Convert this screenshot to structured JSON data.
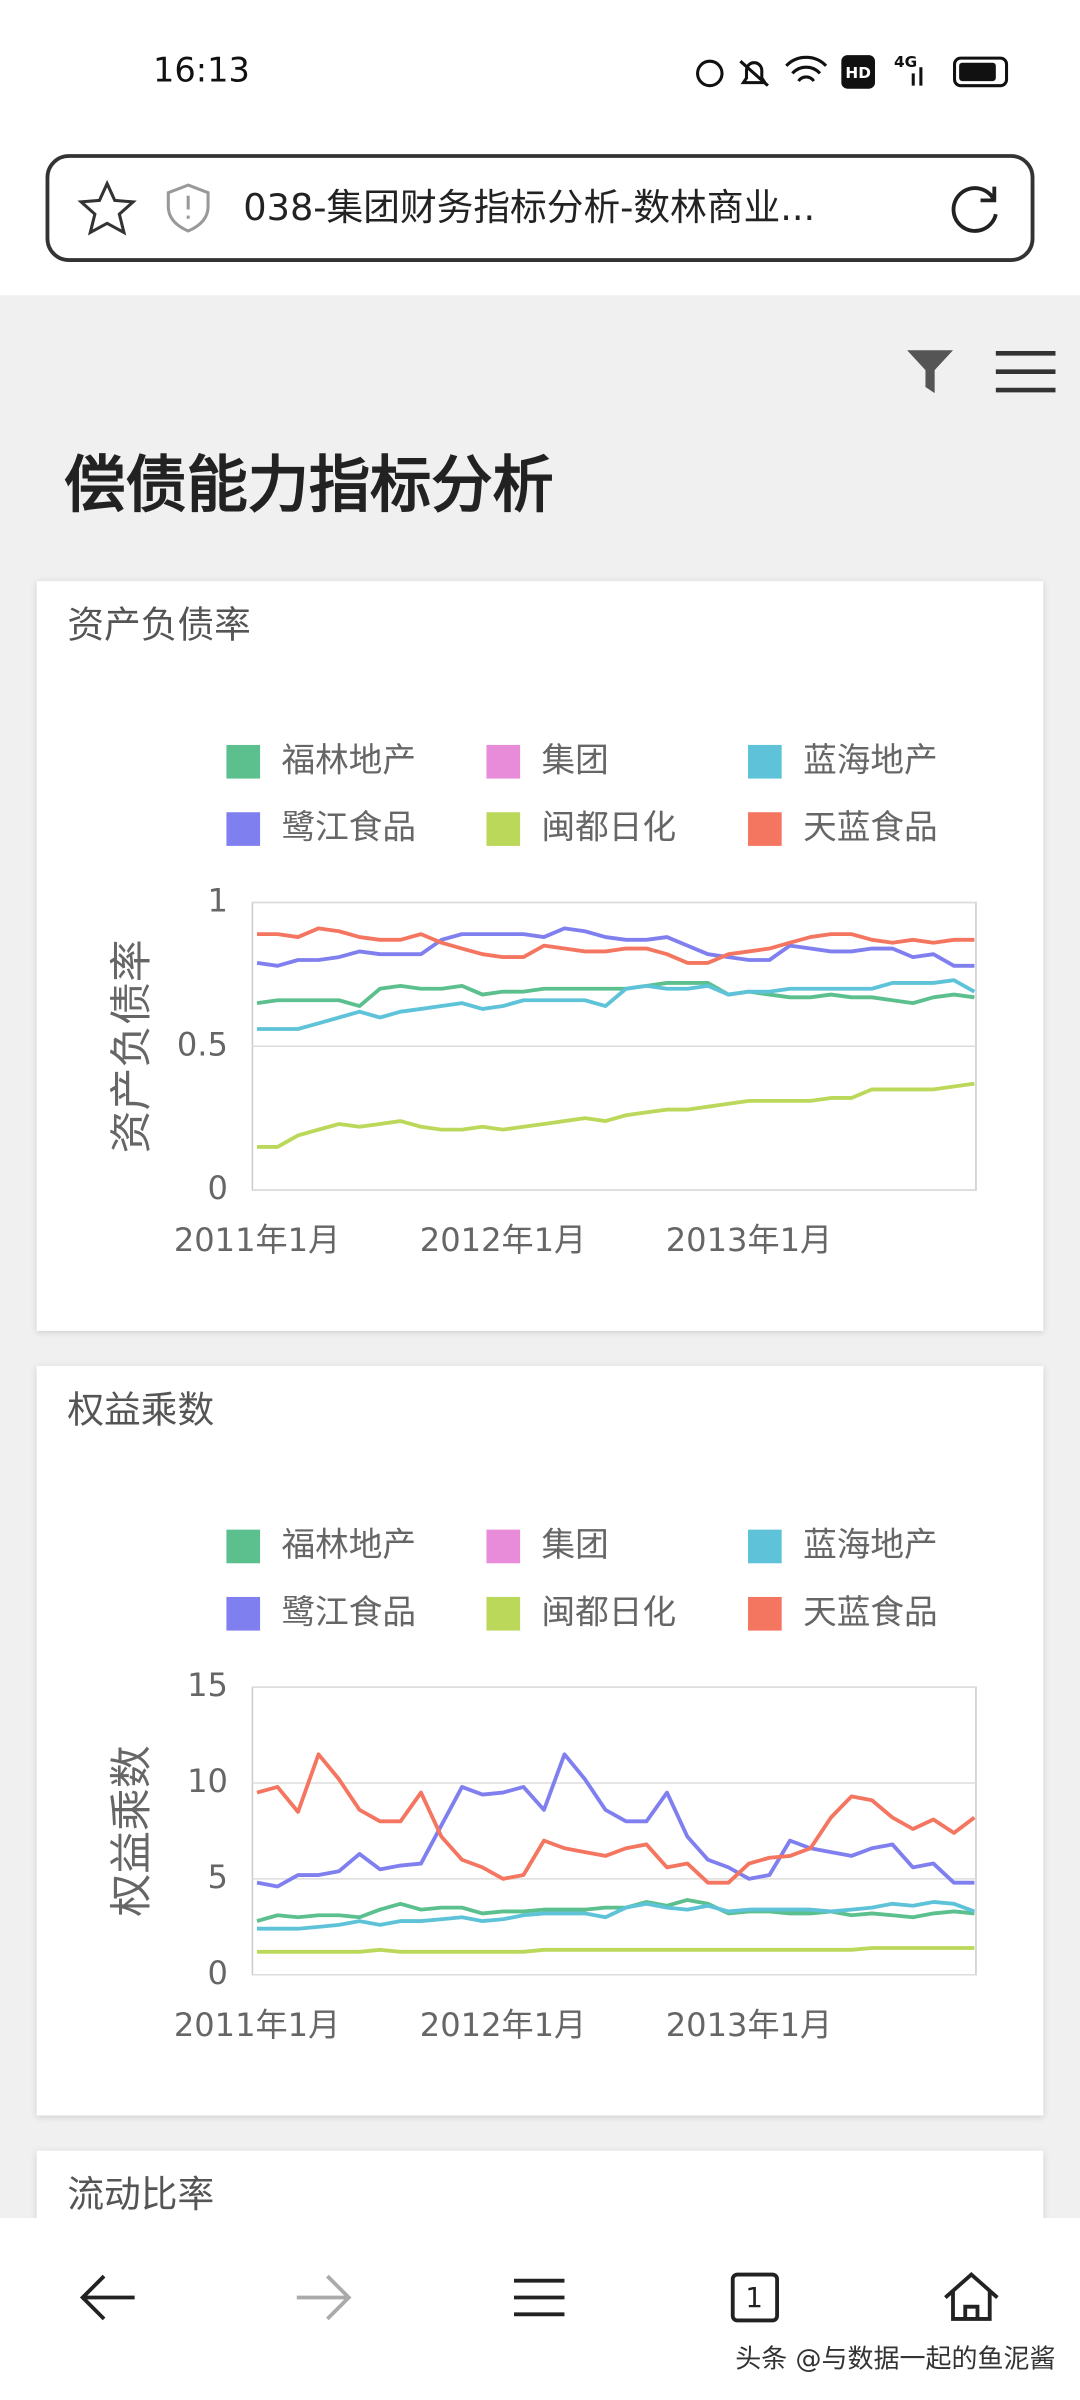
{
  "status_bar": {
    "time": "16:13",
    "badges": [
      "HD",
      "4G"
    ]
  },
  "url_bar": {
    "title": "038-集团财务指标分析-数林商业..."
  },
  "page_title": "偿债能力指标分析",
  "chart_data": [
    {
      "type": "line",
      "title": "资产负债率",
      "y_label": "资产负债率",
      "categories": [
        "2011年1月",
        null,
        null,
        null,
        null,
        null,
        null,
        null,
        null,
        null,
        null,
        null,
        "2012年1月",
        null,
        null,
        null,
        null,
        null,
        null,
        null,
        null,
        null,
        null,
        null,
        "2013年1月",
        null,
        null,
        null,
        null,
        null,
        null,
        null,
        null,
        null,
        null,
        null
      ],
      "ylim": [
        0,
        1
      ],
      "yticks": [
        0,
        0.5,
        1
      ],
      "grid": true,
      "series": [
        {
          "name": "福林地产",
          "color": "#5cc08e",
          "values": [
            0.65,
            0.66,
            0.66,
            0.66,
            0.66,
            0.64,
            0.7,
            0.71,
            0.7,
            0.7,
            0.71,
            0.68,
            0.69,
            0.69,
            0.7,
            0.7,
            0.7,
            0.7,
            0.7,
            0.71,
            0.72,
            0.72,
            0.72,
            0.68,
            0.69,
            0.68,
            0.67,
            0.67,
            0.68,
            0.67,
            0.67,
            0.66,
            0.65,
            0.67,
            0.68,
            0.67
          ]
        },
        {
          "name": "集团",
          "color": "#e88bd8",
          "values": [
            null,
            null,
            null,
            null,
            null,
            null,
            null,
            null,
            null,
            null,
            null,
            null,
            null,
            null,
            null,
            null,
            null,
            null,
            null,
            null,
            null,
            null,
            null,
            null,
            null,
            null,
            null,
            null,
            null,
            null,
            null,
            null,
            null,
            null,
            null,
            null
          ]
        },
        {
          "name": "蓝海地产",
          "color": "#5ec3d8",
          "values": [
            0.56,
            0.56,
            0.56,
            0.58,
            0.6,
            0.62,
            0.6,
            0.62,
            0.63,
            0.64,
            0.65,
            0.63,
            0.64,
            0.66,
            0.66,
            0.66,
            0.66,
            0.64,
            0.7,
            0.71,
            0.7,
            0.7,
            0.71,
            0.68,
            0.69,
            0.69,
            0.7,
            0.7,
            0.7,
            0.7,
            0.7,
            0.72,
            0.72,
            0.72,
            0.73,
            0.69
          ]
        },
        {
          "name": "鹭江食品",
          "color": "#7f7fef",
          "values": [
            0.79,
            0.78,
            0.8,
            0.8,
            0.81,
            0.83,
            0.82,
            0.82,
            0.82,
            0.87,
            0.89,
            0.89,
            0.89,
            0.89,
            0.88,
            0.91,
            0.9,
            0.88,
            0.87,
            0.87,
            0.88,
            0.85,
            0.82,
            0.81,
            0.8,
            0.8,
            0.85,
            0.84,
            0.83,
            0.83,
            0.84,
            0.84,
            0.81,
            0.82,
            0.78,
            0.78
          ]
        },
        {
          "name": "闽都日化",
          "color": "#bcd85a",
          "values": [
            0.15,
            0.15,
            0.19,
            0.21,
            0.23,
            0.22,
            0.23,
            0.24,
            0.22,
            0.21,
            0.21,
            0.22,
            0.21,
            0.22,
            0.23,
            0.24,
            0.25,
            0.24,
            0.26,
            0.27,
            0.28,
            0.28,
            0.29,
            0.3,
            0.31,
            0.31,
            0.31,
            0.31,
            0.32,
            0.32,
            0.35,
            0.35,
            0.35,
            0.35,
            0.36,
            0.37
          ]
        },
        {
          "name": "天蓝食品",
          "color": "#f47560",
          "values": [
            0.89,
            0.89,
            0.88,
            0.91,
            0.9,
            0.88,
            0.87,
            0.87,
            0.89,
            0.86,
            0.84,
            0.82,
            0.81,
            0.81,
            0.85,
            0.84,
            0.83,
            0.83,
            0.84,
            0.84,
            0.82,
            0.79,
            0.79,
            0.82,
            0.83,
            0.84,
            0.86,
            0.88,
            0.89,
            0.89,
            0.87,
            0.86,
            0.87,
            0.86,
            0.87,
            0.87
          ]
        }
      ]
    },
    {
      "type": "line",
      "title": "权益乘数",
      "y_label": "权益乘数",
      "categories": [
        "2011年1月",
        null,
        null,
        null,
        null,
        null,
        null,
        null,
        null,
        null,
        null,
        null,
        "2012年1月",
        null,
        null,
        null,
        null,
        null,
        null,
        null,
        null,
        null,
        null,
        null,
        "2013年1月",
        null,
        null,
        null,
        null,
        null,
        null,
        null,
        null,
        null,
        null,
        null
      ],
      "ylim": [
        0,
        15
      ],
      "yticks": [
        0,
        5,
        10,
        15
      ],
      "grid": true,
      "series": [
        {
          "name": "福林地产",
          "color": "#5cc08e",
          "values": [
            2.8,
            3.1,
            3.0,
            3.1,
            3.1,
            3.0,
            3.4,
            3.7,
            3.4,
            3.5,
            3.5,
            3.2,
            3.3,
            3.3,
            3.4,
            3.4,
            3.4,
            3.5,
            3.5,
            3.8,
            3.6,
            3.9,
            3.7,
            3.2,
            3.3,
            3.3,
            3.2,
            3.2,
            3.3,
            3.1,
            3.2,
            3.1,
            3.0,
            3.2,
            3.3,
            3.2
          ]
        },
        {
          "name": "集团",
          "color": "#e88bd8",
          "values": [
            null,
            null,
            null,
            null,
            null,
            null,
            null,
            null,
            null,
            null,
            null,
            null,
            null,
            null,
            null,
            null,
            null,
            null,
            null,
            null,
            null,
            null,
            null,
            null,
            null,
            null,
            null,
            null,
            null,
            null,
            null,
            null,
            null,
            null,
            null,
            null
          ]
        },
        {
          "name": "蓝海地产",
          "color": "#5ec3d8",
          "values": [
            2.4,
            2.4,
            2.4,
            2.5,
            2.6,
            2.8,
            2.6,
            2.8,
            2.8,
            2.9,
            3.0,
            2.8,
            2.9,
            3.1,
            3.2,
            3.2,
            3.2,
            3.0,
            3.5,
            3.7,
            3.5,
            3.4,
            3.6,
            3.3,
            3.4,
            3.4,
            3.4,
            3.4,
            3.3,
            3.4,
            3.5,
            3.7,
            3.6,
            3.8,
            3.7,
            3.3
          ]
        },
        {
          "name": "鹭江食品",
          "color": "#7f7fef",
          "values": [
            4.8,
            4.6,
            5.2,
            5.2,
            5.4,
            6.3,
            5.5,
            5.7,
            5.8,
            7.8,
            9.8,
            9.4,
            9.5,
            9.8,
            8.6,
            11.5,
            10.2,
            8.6,
            8.0,
            8.0,
            9.5,
            7.2,
            6.0,
            5.6,
            5.0,
            5.2,
            7.0,
            6.6,
            6.4,
            6.2,
            6.6,
            6.8,
            5.6,
            5.8,
            4.8,
            4.8
          ]
        },
        {
          "name": "闽都日化",
          "color": "#bcd85a",
          "values": [
            1.2,
            1.2,
            1.2,
            1.2,
            1.2,
            1.2,
            1.3,
            1.2,
            1.2,
            1.2,
            1.2,
            1.2,
            1.2,
            1.2,
            1.3,
            1.3,
            1.3,
            1.3,
            1.3,
            1.3,
            1.3,
            1.3,
            1.3,
            1.3,
            1.3,
            1.3,
            1.3,
            1.3,
            1.3,
            1.3,
            1.4,
            1.4,
            1.4,
            1.4,
            1.4,
            1.4
          ]
        },
        {
          "name": "天蓝食品",
          "color": "#f47560",
          "values": [
            9.5,
            9.8,
            8.5,
            11.5,
            10.2,
            8.6,
            8.0,
            8.0,
            9.5,
            7.2,
            6.0,
            5.6,
            5.0,
            5.2,
            7.0,
            6.6,
            6.4,
            6.2,
            6.6,
            6.8,
            5.6,
            5.8,
            4.8,
            4.8,
            5.8,
            6.1,
            6.2,
            6.6,
            8.2,
            9.3,
            9.1,
            8.2,
            7.6,
            8.1,
            7.4,
            8.2
          ]
        }
      ]
    }
  ],
  "next_card_title": "流动比率",
  "bottom_nav": {
    "tab_count": 1
  },
  "watermark": "头条 @与数据一起的鱼泥酱"
}
